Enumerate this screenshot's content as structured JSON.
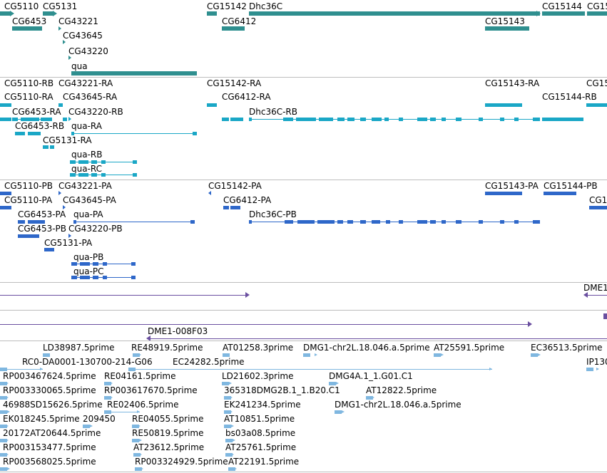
{
  "colors": {
    "gene": "#2f8f8f",
    "mrna_light": "#1aa7c6",
    "cds": "#2e67c9",
    "purple": "#6a4fa0",
    "est": "#7fb7e0",
    "separator": "#bdbdbd"
  },
  "tracks": {
    "genes": {
      "labels": [
        "CG5110",
        "CG5131",
        "CG6453",
        "CG43221",
        "CG43645",
        "CG43220",
        "qua",
        "CG15142",
        "Dhc36C",
        "CG6412",
        "CG15143",
        "CG15144",
        "CG15"
      ]
    },
    "transcripts": {
      "labels": [
        "CG5110-RB",
        "CG43221-RA",
        "CG5110-RA",
        "CG43645-RA",
        "CG6453-RA",
        "CG43220-RB",
        "CG6453-RB",
        "qua-RA",
        "CG5131-RA",
        "qua-RB",
        "qua-RC",
        "CG15142-RA",
        "CG6412-RA",
        "Dhc36C-RB",
        "CG15143-RA",
        "CG15",
        "CG15144-RB"
      ]
    },
    "proteins": {
      "labels": [
        "CG5110-PB",
        "CG43221-PA",
        "CG5110-PA",
        "CG43645-PA",
        "CG6453-PA",
        "qua-PA",
        "CG6453-PB",
        "CG43220-PB",
        "CG5131-PA",
        "qua-PB",
        "qua-PC",
        "CG15142-PA",
        "CG6412-PA",
        "Dhc36C-PB",
        "CG15143-PA",
        "CG15144-PB",
        "CG1"
      ]
    },
    "clones": {
      "labels": [
        "DME1",
        "DME1-008F03"
      ]
    },
    "ests": {
      "labels": [
        "LD38987.5prime",
        "RE48919.5prime",
        "AT01258.3prime",
        "DMG1-chr2L.18.046.a.5prime",
        "AT25591.5prime",
        "EC36513.5prime",
        "RC0-DA0001-130700-214-G06",
        "EC24282.5prime",
        "IP130",
        "RP003467624.5prime",
        "RE04161.5prime",
        "LD21602.3prime",
        "DMG4A.1_1.G01.C1",
        "RP003330065.5prime",
        "RP003617670.5prime",
        "365318DMG2B.1_1.B20.C1",
        "AT12822.5prime",
        "46988SD15626.5prime",
        "RE02406.5prime",
        "EK241234.5prime",
        "DMG1-chr2L.18.046.a.5prime",
        "EK018245.5prime",
        "209450",
        "RE04055.5prime",
        "AT10851.5prime",
        "20172AT20644.5prime",
        "RE50819.5prime",
        "bs03a08.5prime",
        "RP003153477.5prime",
        "AT23612.5prime",
        "AT25761.5prime",
        "RP003568025.5prime",
        "RP003324929.5prime",
        "AT22191.5prime"
      ]
    }
  }
}
